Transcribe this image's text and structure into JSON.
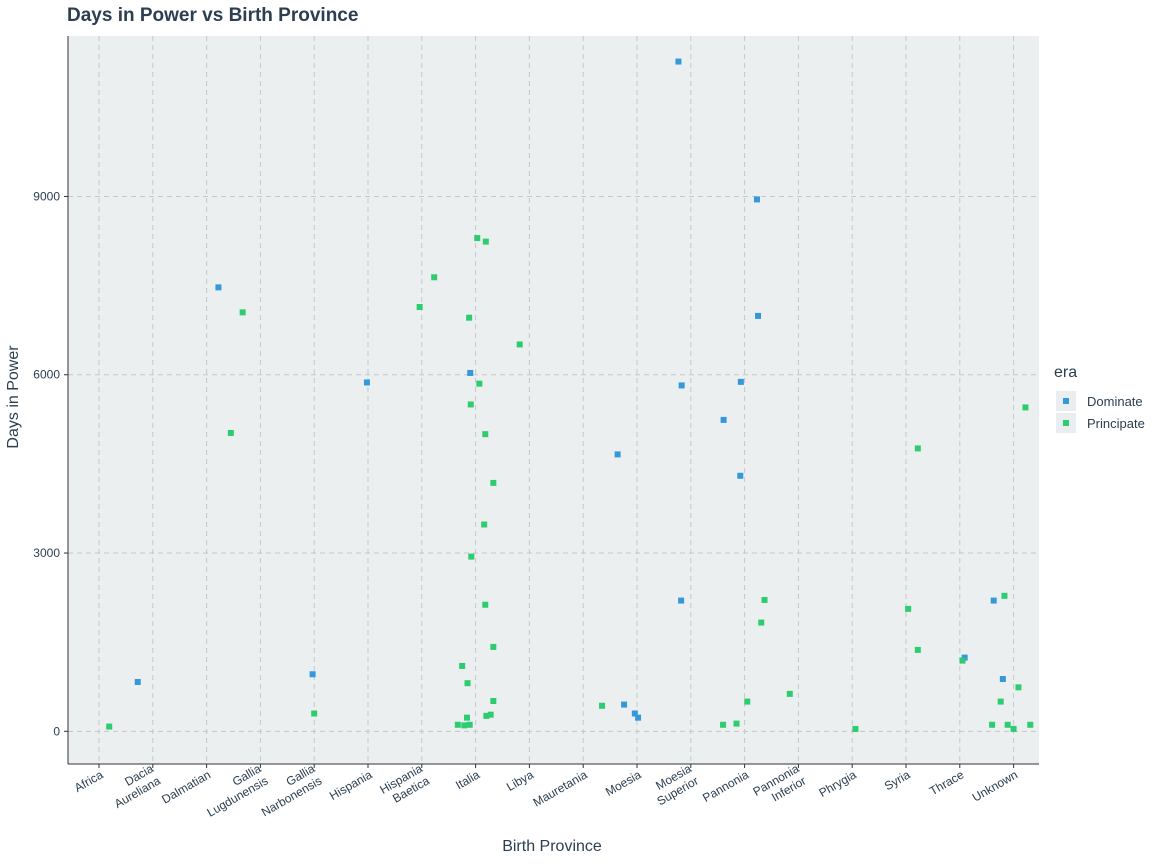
{
  "colors": {
    "Dominate": "#3498db",
    "Principate": "#2ecc71",
    "text": "#2c3e50",
    "panel": "#eceff0",
    "grid": "#c4c8ca"
  },
  "chart_data": {
    "type": "scatter",
    "title": "Days in Power vs Birth Province",
    "xlabel": "Birth Province",
    "ylabel": "Days in Power",
    "categories": [
      "Africa",
      "Dacia Aureliana",
      "Dalmatian",
      "Gallia Lugdunensis",
      "Gallia Narbonensis",
      "Hispania",
      "Hispania Baetica",
      "Italia",
      "Libya",
      "Mauretania",
      "Moesia",
      "Moesia Superior",
      "Pannonia",
      "Pannonia Inferior",
      "Phrygia",
      "Syria",
      "Thrace",
      "Unknown"
    ],
    "tick_labels": [
      [
        "Africa"
      ],
      [
        "Dacia",
        "Aureliana"
      ],
      [
        "Dalmatian"
      ],
      [
        "Gallia",
        "Lugdunensis"
      ],
      [
        "Gallia",
        "Narbonensis"
      ],
      [
        "Hispania"
      ],
      [
        "Hispania",
        "Baetica"
      ],
      [
        "Italia"
      ],
      [
        "Libya"
      ],
      [
        "Mauretania"
      ],
      [
        "Moesia"
      ],
      [
        "Moesia",
        "Superior"
      ],
      [
        "Pannonia"
      ],
      [
        "Pannonia",
        "Inferior"
      ],
      [
        "Phrygia"
      ],
      [
        "Syria"
      ],
      [
        "Thrace"
      ],
      [
        "Unknown"
      ]
    ],
    "ylim": [
      -550,
      11700
    ],
    "yticks": [
      0,
      3000,
      6000,
      9000
    ],
    "grid": true,
    "legend": {
      "title": "era",
      "position": "right",
      "entries": [
        "Dominate",
        "Principate"
      ]
    },
    "series": [
      {
        "name": "Dominate",
        "points": [
          {
            "x": 1,
            "offset": -0.28,
            "y": 830
          },
          {
            "x": 2,
            "offset": 0.22,
            "y": 7470
          },
          {
            "x": 4,
            "offset": -0.03,
            "y": 960
          },
          {
            "x": 5,
            "offset": -0.02,
            "y": 5870
          },
          {
            "x": 7,
            "offset": -0.1,
            "y": 6030
          },
          {
            "x": 10,
            "offset": -0.36,
            "y": 4660
          },
          {
            "x": 10,
            "offset": -0.24,
            "y": 450
          },
          {
            "x": 10,
            "offset": -0.04,
            "y": 300
          },
          {
            "x": 10,
            "offset": 0.02,
            "y": 230
          },
          {
            "x": 11,
            "offset": -0.23,
            "y": 11270
          },
          {
            "x": 11,
            "offset": -0.17,
            "y": 5820
          },
          {
            "x": 11,
            "offset": -0.18,
            "y": 2200
          },
          {
            "x": 12,
            "offset": -0.39,
            "y": 5240
          },
          {
            "x": 12,
            "offset": -0.07,
            "y": 5880
          },
          {
            "x": 12,
            "offset": -0.08,
            "y": 4300
          },
          {
            "x": 12,
            "offset": 0.23,
            "y": 8950
          },
          {
            "x": 12,
            "offset": 0.25,
            "y": 6990
          },
          {
            "x": 16,
            "offset": 0.09,
            "y": 1240
          },
          {
            "x": 17,
            "offset": -0.37,
            "y": 2200
          },
          {
            "x": 17,
            "offset": -0.2,
            "y": 880
          }
        ]
      },
      {
        "name": "Principate",
        "points": [
          {
            "x": 0,
            "offset": 0.19,
            "y": 80
          },
          {
            "x": 3,
            "offset": -0.55,
            "y": 5020
          },
          {
            "x": 3,
            "offset": -0.33,
            "y": 7050
          },
          {
            "x": 4,
            "offset": 0.0,
            "y": 300
          },
          {
            "x": 6,
            "offset": -0.04,
            "y": 7140
          },
          {
            "x": 6,
            "offset": 0.23,
            "y": 7640
          },
          {
            "x": 7,
            "offset": 0.03,
            "y": 8300
          },
          {
            "x": 7,
            "offset": 0.19,
            "y": 8240
          },
          {
            "x": 7,
            "offset": -0.12,
            "y": 6960
          },
          {
            "x": 7,
            "offset": 0.07,
            "y": 5850
          },
          {
            "x": 7,
            "offset": -0.09,
            "y": 5500
          },
          {
            "x": 7,
            "offset": 0.18,
            "y": 5000
          },
          {
            "x": 7,
            "offset": 0.33,
            "y": 4180
          },
          {
            "x": 7,
            "offset": 0.16,
            "y": 3480
          },
          {
            "x": 7,
            "offset": -0.08,
            "y": 2940
          },
          {
            "x": 7,
            "offset": 0.18,
            "y": 2130
          },
          {
            "x": 7,
            "offset": 0.33,
            "y": 1420
          },
          {
            "x": 7,
            "offset": -0.25,
            "y": 1100
          },
          {
            "x": 7,
            "offset": -0.15,
            "y": 810
          },
          {
            "x": 7,
            "offset": 0.33,
            "y": 510
          },
          {
            "x": 7,
            "offset": 0.28,
            "y": 280
          },
          {
            "x": 7,
            "offset": 0.2,
            "y": 260
          },
          {
            "x": 7,
            "offset": -0.16,
            "y": 230
          },
          {
            "x": 7,
            "offset": -0.33,
            "y": 110
          },
          {
            "x": 7,
            "offset": -0.21,
            "y": 100
          },
          {
            "x": 7,
            "offset": -0.11,
            "y": 110
          },
          {
            "x": 8,
            "offset": -0.18,
            "y": 6510
          },
          {
            "x": 9,
            "offset": 0.35,
            "y": 430
          },
          {
            "x": 12,
            "offset": -0.4,
            "y": 110
          },
          {
            "x": 12,
            "offset": -0.15,
            "y": 130
          },
          {
            "x": 12,
            "offset": 0.05,
            "y": 500
          },
          {
            "x": 12,
            "offset": 0.31,
            "y": 1830
          },
          {
            "x": 12,
            "offset": 0.37,
            "y": 2210
          },
          {
            "x": 13,
            "offset": -0.16,
            "y": 630
          },
          {
            "x": 14,
            "offset": 0.06,
            "y": 40
          },
          {
            "x": 15,
            "offset": 0.04,
            "y": 2060
          },
          {
            "x": 15,
            "offset": 0.22,
            "y": 4760
          },
          {
            "x": 15,
            "offset": 0.22,
            "y": 1370
          },
          {
            "x": 16,
            "offset": 0.05,
            "y": 1190
          },
          {
            "x": 16,
            "offset": 0.6,
            "y": 110
          },
          {
            "x": 17,
            "offset": -0.17,
            "y": 2280
          },
          {
            "x": 17,
            "offset": 0.22,
            "y": 5450
          },
          {
            "x": 17,
            "offset": 0.09,
            "y": 740
          },
          {
            "x": 17,
            "offset": -0.24,
            "y": 500
          },
          {
            "x": 17,
            "offset": -0.11,
            "y": 110
          },
          {
            "x": 17,
            "offset": 0.0,
            "y": 40
          },
          {
            "x": 17,
            "offset": 0.31,
            "y": 110
          }
        ]
      }
    ]
  }
}
